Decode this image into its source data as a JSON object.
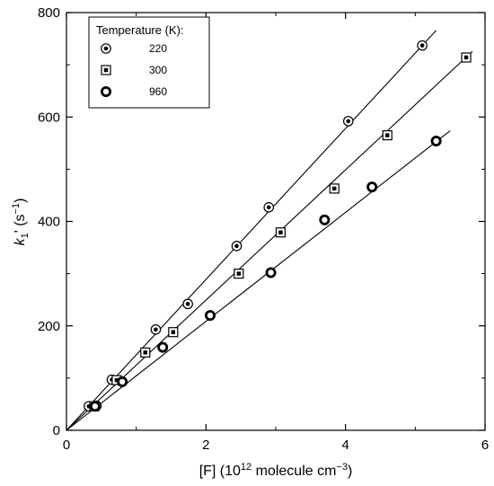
{
  "chart_data": {
    "type": "scatter",
    "xlabel": {
      "base": "[F] (10",
      "sup1": "12",
      "mid": " molecule cm",
      "sup2": "−3",
      "end": ")"
    },
    "ylabel": {
      "k": "k",
      "sub": "1",
      "prime": "' (s",
      "sup": "−1",
      "end": ")"
    },
    "xlim": [
      0,
      6
    ],
    "ylim": [
      0,
      800
    ],
    "xticks": [
      0,
      2,
      4,
      6
    ],
    "yticks": [
      0,
      200,
      400,
      600,
      800
    ],
    "xticks_minor": [
      1,
      3,
      5
    ],
    "yticks_minor": [
      100,
      300,
      500,
      700
    ],
    "grid": false,
    "legend": {
      "title": "Temperature (K):",
      "placement": "top-left"
    },
    "series": [
      {
        "name": "220",
        "marker": "circle-dot",
        "points": [
          [
            0.32,
            46
          ],
          [
            0.43,
            47
          ],
          [
            0.65,
            97
          ],
          [
            1.28,
            193
          ],
          [
            1.74,
            242
          ],
          [
            2.44,
            353
          ],
          [
            2.9,
            427
          ],
          [
            4.04,
            592
          ],
          [
            5.1,
            737
          ]
        ],
        "fit": {
          "slope": 144.5,
          "x_end": 5.3
        }
      },
      {
        "name": "300",
        "marker": "square-dot",
        "points": [
          [
            0.4,
            46
          ],
          [
            0.72,
            96
          ],
          [
            1.13,
            149
          ],
          [
            1.53,
            188
          ],
          [
            2.47,
            300
          ],
          [
            3.07,
            379
          ],
          [
            3.84,
            463
          ],
          [
            4.6,
            565
          ],
          [
            5.73,
            714
          ]
        ],
        "fit": {
          "slope": 124.7,
          "x_end": 5.82
        }
      },
      {
        "name": "960",
        "marker": "ring",
        "points": [
          [
            0.41,
            46
          ],
          [
            0.8,
            93
          ],
          [
            1.38,
            159
          ],
          [
            2.06,
            220
          ],
          [
            2.93,
            302
          ],
          [
            3.7,
            403
          ],
          [
            4.38,
            466
          ],
          [
            5.3,
            554
          ]
        ],
        "fit": {
          "slope": 104.3,
          "x_end": 5.5
        }
      }
    ]
  }
}
